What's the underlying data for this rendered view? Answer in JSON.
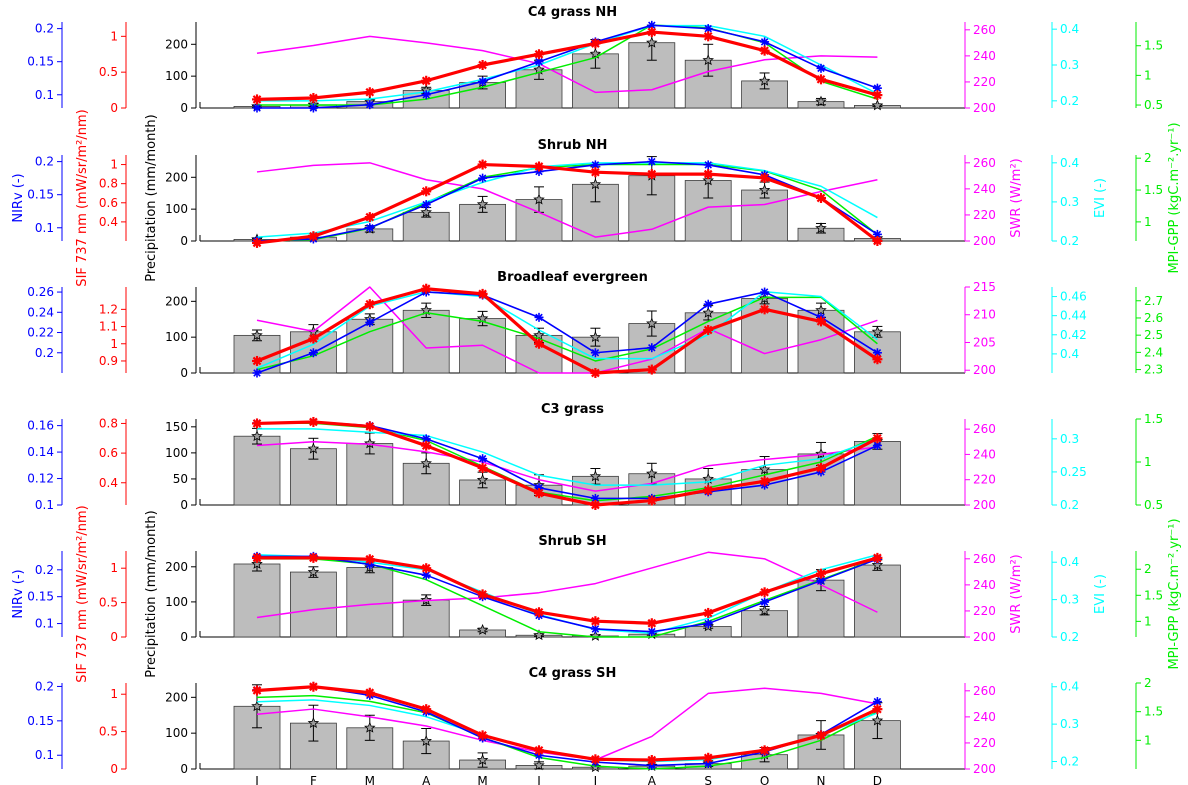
{
  "figure": {
    "months": [
      "J",
      "F",
      "M",
      "A",
      "M",
      "J",
      "J",
      "A",
      "S",
      "O",
      "N",
      "D"
    ],
    "axis_labels": {
      "nirv": "NIRv (-)",
      "sif": "SIF 737 nm (mW/sr/m²/nm)",
      "precip": "Precipitation (mm/month)",
      "swr": "SWR (W/m²)",
      "evi": "EVI (-)",
      "gpp": "MPI-GPP (kgC.m⁻².yr⁻¹)"
    },
    "colors": {
      "precip": "#bdbdbd",
      "nirv": "#0000ff",
      "sif": "#ff0000",
      "swr": "#ff00ff",
      "evi": "#00ffff",
      "gpp": "#00ee00"
    }
  },
  "chart_data": [
    {
      "type": "bar",
      "title": "C4 grass NH",
      "categories": [
        "J",
        "F",
        "M",
        "A",
        "M",
        "J",
        "J",
        "A",
        "S",
        "O",
        "N",
        "D"
      ],
      "precip": [
        5,
        10,
        20,
        55,
        80,
        120,
        170,
        205,
        150,
        85,
        20,
        8
      ],
      "precip_err": [
        3,
        5,
        8,
        10,
        20,
        30,
        45,
        55,
        50,
        25,
        10,
        3
      ],
      "precip_ylim": [
        0,
        270
      ],
      "precip_ticks": [
        0,
        100,
        200
      ],
      "nirv": [
        0.08,
        0.08,
        0.085,
        0.1,
        0.12,
        0.15,
        0.18,
        0.205,
        0.2,
        0.18,
        0.14,
        0.11
      ],
      "nirv_ylim": [
        0.08,
        0.21
      ],
      "nirv_ticks": [
        0.1,
        0.15,
        0.2
      ],
      "sif": [
        0.12,
        0.14,
        0.22,
        0.38,
        0.6,
        0.75,
        0.9,
        1.06,
        1.0,
        0.8,
        0.4,
        0.18
      ],
      "sif_ylim": [
        0,
        1.2
      ],
      "sif_ticks": [
        0,
        0.5,
        1
      ],
      "swr": [
        242,
        248,
        255,
        250,
        244,
        234,
        212,
        214,
        228,
        237,
        240,
        239
      ],
      "swr_ylim": [
        200,
        266
      ],
      "swr_ticks": [
        200,
        220,
        240,
        260
      ],
      "evi": [
        0.2,
        0.2,
        0.205,
        0.225,
        0.26,
        0.3,
        0.36,
        0.41,
        0.41,
        0.38,
        0.3,
        0.22
      ],
      "evi_ylim": [
        0.18,
        0.42
      ],
      "evi_ticks": [
        0.2,
        0.3,
        0.4
      ],
      "gpp": [
        0.5,
        0.5,
        0.5,
        0.6,
        0.8,
        1.05,
        1.3,
        1.85,
        1.8,
        1.55,
        0.9,
        0.6
      ],
      "gpp_ylim": [
        0.45,
        1.9
      ],
      "gpp_ticks": [
        0.5,
        1,
        1.5
      ]
    },
    {
      "type": "bar",
      "title": "Shrub NH",
      "categories": [
        "J",
        "F",
        "M",
        "A",
        "M",
        "J",
        "J",
        "A",
        "S",
        "O",
        "N",
        "D"
      ],
      "precip": [
        5,
        12,
        38,
        90,
        115,
        130,
        178,
        205,
        190,
        160,
        40,
        8
      ],
      "precip_err": [
        3,
        6,
        10,
        15,
        25,
        40,
        55,
        60,
        55,
        25,
        15,
        5
      ],
      "precip_ylim": [
        0,
        270
      ],
      "precip_ticks": [
        0,
        100,
        200
      ],
      "nirv": [
        0.08,
        0.083,
        0.1,
        0.135,
        0.175,
        0.185,
        0.195,
        0.2,
        0.195,
        0.18,
        0.145,
        0.09
      ],
      "nirv_ylim": [
        0.08,
        0.21
      ],
      "nirv_ticks": [
        0.1,
        0.15,
        0.2
      ],
      "sif": [
        0.18,
        0.25,
        0.45,
        0.72,
        1.0,
        0.98,
        0.92,
        0.9,
        0.9,
        0.86,
        0.65,
        0.2
      ],
      "sif_ylim": [
        0.2,
        1.1
      ],
      "sif_ticks": [
        0.4,
        0.6,
        0.8,
        1
      ],
      "swr": [
        253,
        258,
        260,
        247,
        240,
        222,
        203,
        209,
        226,
        228,
        238,
        247
      ],
      "swr_ylim": [
        200,
        266
      ],
      "swr_ticks": [
        200,
        220,
        240,
        260
      ],
      "evi": [
        0.21,
        0.22,
        0.25,
        0.3,
        0.35,
        0.39,
        0.4,
        0.4,
        0.4,
        0.38,
        0.34,
        0.26
      ],
      "evi_ylim": [
        0.2,
        0.42
      ],
      "evi_ticks": [
        0.2,
        0.3,
        0.4
      ],
      "gpp": [
        0.7,
        0.72,
        0.9,
        1.3,
        1.7,
        1.85,
        1.9,
        1.9,
        1.9,
        1.8,
        1.5,
        0.8
      ],
      "gpp_ylim": [
        0.7,
        2.05
      ],
      "gpp_ticks": [
        1,
        1.5,
        2
      ]
    },
    {
      "type": "bar",
      "title": "Broadleaf evergreen",
      "categories": [
        "J",
        "F",
        "M",
        "A",
        "M",
        "J",
        "J",
        "A",
        "S",
        "O",
        "N",
        "D"
      ],
      "precip": [
        105,
        115,
        150,
        175,
        152,
        105,
        100,
        138,
        168,
        208,
        175,
        115
      ],
      "precip_err": [
        15,
        20,
        15,
        20,
        20,
        20,
        25,
        35,
        20,
        15,
        20,
        15
      ],
      "precip_ylim": [
        0,
        240
      ],
      "precip_ticks": [
        0,
        100,
        200
      ],
      "nirv": [
        0.18,
        0.2,
        0.23,
        0.26,
        0.257,
        0.235,
        0.2,
        0.205,
        0.248,
        0.26,
        0.235,
        0.2
      ],
      "nirv_ylim": [
        0.18,
        0.265
      ],
      "nirv_ticks": [
        0.2,
        0.22,
        0.24,
        0.26
      ],
      "sif": [
        0.9,
        1.03,
        1.23,
        1.32,
        1.29,
        1.0,
        0.83,
        0.85,
        1.08,
        1.2,
        1.13,
        0.91
      ],
      "sif_ylim": [
        0.83,
        1.33
      ],
      "sif_ticks": [
        0.9,
        1,
        1.1,
        1.2
      ],
      "swr": [
        209,
        207,
        215,
        204,
        204.5,
        199.5,
        199.5,
        202,
        207.5,
        203,
        205.5,
        209
      ],
      "swr_ylim": [
        199.5,
        215
      ],
      "swr_ticks": [
        200,
        205,
        210,
        215
      ],
      "evi": [
        0.385,
        0.41,
        0.45,
        0.465,
        0.46,
        0.425,
        0.395,
        0.395,
        0.42,
        0.465,
        0.46,
        0.415
      ],
      "evi_ylim": [
        0.38,
        0.47
      ],
      "evi_ticks": [
        0.4,
        0.42,
        0.44,
        0.46
      ],
      "gpp": [
        2.3,
        2.38,
        2.52,
        2.63,
        2.58,
        2.48,
        2.35,
        2.42,
        2.58,
        2.72,
        2.72,
        2.45
      ],
      "gpp_ylim": [
        2.28,
        2.78
      ],
      "gpp_ticks": [
        2.3,
        2.4,
        2.5,
        2.6,
        2.7
      ]
    },
    {
      "type": "bar",
      "title": "C3 grass",
      "categories": [
        "J",
        "F",
        "M",
        "A",
        "M",
        "J",
        "J",
        "A",
        "S",
        "O",
        "N",
        "D"
      ],
      "precip": [
        132,
        108,
        118,
        80,
        48,
        38,
        55,
        60,
        50,
        68,
        98,
        122
      ],
      "precip_err": [
        15,
        20,
        20,
        20,
        15,
        20,
        15,
        20,
        20,
        25,
        22,
        15
      ],
      "precip_ylim": [
        0,
        165
      ],
      "precip_ticks": [
        0,
        50,
        100,
        150
      ],
      "nirv": [
        0.162,
        0.163,
        0.16,
        0.15,
        0.135,
        0.113,
        0.105,
        0.105,
        0.11,
        0.115,
        0.125,
        0.145
      ],
      "nirv_ylim": [
        0.1,
        0.165
      ],
      "nirv_ticks": [
        0.1,
        0.12,
        0.14,
        0.16
      ],
      "sif": [
        0.8,
        0.81,
        0.78,
        0.65,
        0.5,
        0.33,
        0.25,
        0.28,
        0.35,
        0.41,
        0.5,
        0.7
      ],
      "sif_ylim": [
        0.25,
        0.83
      ],
      "sif_ticks": [
        0.4,
        0.6,
        0.8
      ],
      "swr": [
        247,
        250,
        248,
        242,
        234,
        220,
        211,
        217,
        231,
        236,
        240,
        246
      ],
      "swr_ylim": [
        200,
        268
      ],
      "swr_ticks": [
        200,
        220,
        240,
        260
      ],
      "evi": [
        0.315,
        0.315,
        0.31,
        0.305,
        0.28,
        0.245,
        0.23,
        0.23,
        0.235,
        0.26,
        0.27,
        0.3
      ],
      "evi_ylim": [
        0.2,
        0.33
      ],
      "evi_ticks": [
        0.2,
        0.25,
        0.3
      ],
      "gpp": [
        1.45,
        1.45,
        1.4,
        1.25,
        0.95,
        0.65,
        0.55,
        0.6,
        0.7,
        0.85,
        1.0,
        1.3
      ],
      "gpp_ylim": [
        0.5,
        1.5
      ],
      "gpp_ticks": [
        0.5,
        1,
        1.5
      ]
    },
    {
      "type": "bar",
      "title": "Shrub SH",
      "categories": [
        "J",
        "F",
        "M",
        "A",
        "M",
        "J",
        "J",
        "A",
        "S",
        "O",
        "N",
        "D"
      ],
      "precip": [
        208,
        185,
        198,
        105,
        20,
        5,
        3,
        8,
        30,
        75,
        162,
        205
      ],
      "precip_err": [
        20,
        15,
        15,
        15,
        5,
        3,
        3,
        3,
        5,
        12,
        30,
        15
      ],
      "precip_ylim": [
        0,
        245
      ],
      "precip_ticks": [
        0,
        100,
        200
      ],
      "nirv": [
        0.225,
        0.225,
        0.21,
        0.19,
        0.15,
        0.115,
        0.09,
        0.085,
        0.1,
        0.14,
        0.18,
        0.22
      ],
      "nirv_ylim": [
        0.075,
        0.235
      ],
      "nirv_ticks": [
        0.1,
        0.15,
        0.2
      ],
      "sif": [
        1.15,
        1.15,
        1.13,
        1.0,
        0.62,
        0.36,
        0.23,
        0.2,
        0.35,
        0.65,
        0.92,
        1.15
      ],
      "sif_ylim": [
        0,
        1.25
      ],
      "sif_ticks": [
        0,
        0.5,
        1
      ],
      "swr": [
        215,
        221,
        225,
        228,
        230,
        234,
        241,
        253,
        265,
        260,
        240,
        219
      ],
      "swr_ylim": [
        200,
        266
      ],
      "swr_ticks": [
        200,
        220,
        240,
        260
      ],
      "evi": [
        0.42,
        0.415,
        0.4,
        0.38,
        0.32,
        0.26,
        0.22,
        0.21,
        0.25,
        0.32,
        0.38,
        0.42
      ],
      "evi_ylim": [
        0.2,
        0.43
      ],
      "evi_ticks": [
        0.2,
        0.3,
        0.4
      ],
      "gpp": [
        2.2,
        2.2,
        2.1,
        1.8,
        1.3,
        0.8,
        0.7,
        0.7,
        1.0,
        1.4,
        1.8,
        2.2
      ],
      "gpp_ylim": [
        0.7,
        2.35
      ],
      "gpp_ticks": [
        1,
        1.5,
        2
      ]
    },
    {
      "type": "bar",
      "title": "C4 grass SH",
      "categories": [
        "J",
        "F",
        "M",
        "A",
        "M",
        "J",
        "J",
        "A",
        "S",
        "O",
        "N",
        "D"
      ],
      "precip": [
        175,
        128,
        115,
        78,
        25,
        10,
        5,
        8,
        15,
        40,
        95,
        135
      ],
      "precip_err": [
        60,
        50,
        35,
        35,
        20,
        10,
        5,
        5,
        8,
        20,
        40,
        50
      ],
      "precip_ylim": [
        0,
        240
      ],
      "precip_ticks": [
        0,
        100,
        200
      ],
      "nirv": [
        0.195,
        0.2,
        0.187,
        0.163,
        0.125,
        0.1,
        0.09,
        0.085,
        0.088,
        0.105,
        0.13,
        0.178
      ],
      "nirv_ylim": [
        0.08,
        0.205
      ],
      "nirv_ticks": [
        0.1,
        0.15,
        0.2
      ],
      "sif": [
        1.05,
        1.1,
        1.02,
        0.8,
        0.45,
        0.25,
        0.13,
        0.12,
        0.15,
        0.25,
        0.45,
        0.8
      ],
      "sif_ylim": [
        0,
        1.15
      ],
      "sif_ticks": [
        0,
        0.5,
        1
      ],
      "swr": [
        242,
        246,
        240,
        233,
        222,
        213,
        207,
        225,
        258,
        262,
        258,
        250
      ],
      "swr_ylim": [
        200,
        266
      ],
      "swr_ticks": [
        200,
        220,
        240,
        260
      ],
      "evi": [
        0.36,
        0.365,
        0.35,
        0.32,
        0.27,
        0.23,
        0.205,
        0.2,
        0.205,
        0.23,
        0.27,
        0.33
      ],
      "evi_ylim": [
        0.18,
        0.41
      ],
      "evi_ticks": [
        0.2,
        0.3,
        0.4
      ],
      "gpp": [
        1.75,
        1.78,
        1.68,
        1.48,
        1.05,
        0.7,
        0.55,
        0.5,
        0.55,
        0.7,
        1.0,
        1.5
      ],
      "gpp_ylim": [
        0.5,
        2.0
      ],
      "gpp_ticks": [
        1,
        1.5,
        2
      ]
    }
  ]
}
